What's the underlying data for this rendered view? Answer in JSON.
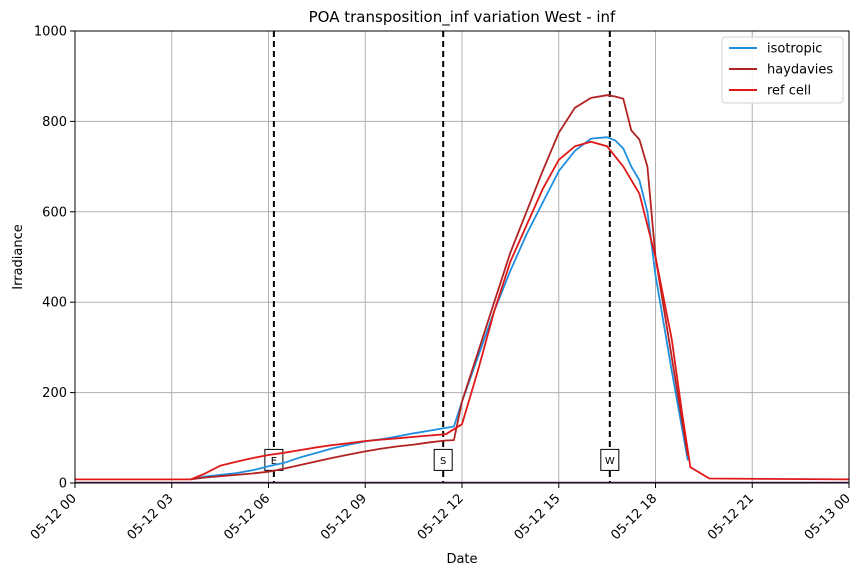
{
  "chart_data": {
    "type": "line",
    "title": "POA transposition_inf variation West - inf",
    "xlabel": "Date",
    "ylabel": "Irradiance",
    "xlim": [
      "05-12 00:00",
      "05-13 00:00"
    ],
    "ylim": [
      0,
      1000
    ],
    "grid": true,
    "legend_position": "top-right",
    "x_ticks": [
      "05-12 00",
      "05-12 03",
      "05-12 06",
      "05-12 09",
      "05-12 12",
      "05-12 15",
      "05-12 18",
      "05-12 21",
      "05-13 00"
    ],
    "y_ticks": [
      0,
      200,
      400,
      600,
      800,
      1000
    ],
    "vertical_markers": [
      {
        "time": "05-12 06:10",
        "label": "E"
      },
      {
        "time": "05-12 11:25",
        "label": "S"
      },
      {
        "time": "05-12 16:35",
        "label": "W"
      }
    ],
    "series": [
      {
        "name": "isotropic",
        "color": "#1f8fe0",
        "points": [
          [
            "05-12 03:35",
            8
          ],
          [
            "05-12 04:00",
            14
          ],
          [
            "05-12 04:30",
            18
          ],
          [
            "05-12 05:00",
            22
          ],
          [
            "05-12 05:30",
            28
          ],
          [
            "05-12 06:00",
            37
          ],
          [
            "05-12 06:30",
            45
          ],
          [
            "05-12 07:00",
            57
          ],
          [
            "05-12 07:30",
            67
          ],
          [
            "05-12 08:00",
            77
          ],
          [
            "05-12 08:30",
            85
          ],
          [
            "05-12 09:00",
            92
          ],
          [
            "05-12 09:30",
            97
          ],
          [
            "05-12 10:00",
            103
          ],
          [
            "05-12 10:30",
            110
          ],
          [
            "05-12 11:00",
            116
          ],
          [
            "05-12 11:30",
            122
          ],
          [
            "05-12 11:45",
            125
          ],
          [
            "05-12 12:00",
            180
          ],
          [
            "05-12 12:30",
            280
          ],
          [
            "05-12 13:00",
            380
          ],
          [
            "05-12 13:30",
            470
          ],
          [
            "05-12 14:00",
            550
          ],
          [
            "05-12 14:30",
            620
          ],
          [
            "05-12 15:00",
            690
          ],
          [
            "05-12 15:30",
            735
          ],
          [
            "05-12 16:00",
            762
          ],
          [
            "05-12 16:30",
            765
          ],
          [
            "05-12 16:45",
            758
          ],
          [
            "05-12 17:00",
            740
          ],
          [
            "05-12 17:15",
            700
          ],
          [
            "05-12 17:30",
            670
          ],
          [
            "05-12 17:45",
            600
          ],
          [
            "05-12 18:00",
            460
          ],
          [
            "05-12 18:30",
            250
          ],
          [
            "05-12 19:00",
            50
          ]
        ]
      },
      {
        "name": "haydavies",
        "color": "#b22222",
        "points": [
          [
            "05-12 03:35",
            8
          ],
          [
            "05-12 04:00",
            12
          ],
          [
            "05-12 04:30",
            15
          ],
          [
            "05-12 05:00",
            18
          ],
          [
            "05-12 05:30",
            21
          ],
          [
            "05-12 06:00",
            25
          ],
          [
            "05-12 06:30",
            32
          ],
          [
            "05-12 07:00",
            40
          ],
          [
            "05-12 07:30",
            48
          ],
          [
            "05-12 08:00",
            56
          ],
          [
            "05-12 08:30",
            63
          ],
          [
            "05-12 09:00",
            70
          ],
          [
            "05-12 09:30",
            76
          ],
          [
            "05-12 10:00",
            81
          ],
          [
            "05-12 10:30",
            85
          ],
          [
            "05-12 11:00",
            90
          ],
          [
            "05-12 11:30",
            94
          ],
          [
            "05-12 11:45",
            95
          ],
          [
            "05-12 12:00",
            180
          ],
          [
            "05-12 12:30",
            290
          ],
          [
            "05-12 13:00",
            400
          ],
          [
            "05-12 13:30",
            510
          ],
          [
            "05-12 14:00",
            600
          ],
          [
            "05-12 14:30",
            690
          ],
          [
            "05-12 15:00",
            775
          ],
          [
            "05-12 15:30",
            830
          ],
          [
            "05-12 16:00",
            852
          ],
          [
            "05-12 16:30",
            858
          ],
          [
            "05-12 16:45",
            855
          ],
          [
            "05-12 17:00",
            850
          ],
          [
            "05-12 17:15",
            780
          ],
          [
            "05-12 17:30",
            760
          ],
          [
            "05-12 17:45",
            700
          ],
          [
            "05-12 18:00",
            500
          ],
          [
            "05-12 18:30",
            280
          ],
          [
            "05-12 19:00",
            60
          ]
        ]
      },
      {
        "name": "ref cell",
        "color": "#e01818",
        "points": [
          [
            "05-12 00:00",
            8
          ],
          [
            "05-12 03:35",
            8
          ],
          [
            "05-12 04:00",
            20
          ],
          [
            "05-12 04:30",
            38
          ],
          [
            "05-12 05:00",
            47
          ],
          [
            "05-12 05:30",
            55
          ],
          [
            "05-12 06:00",
            62
          ],
          [
            "05-12 06:30",
            67
          ],
          [
            "05-12 07:00",
            73
          ],
          [
            "05-12 07:30",
            79
          ],
          [
            "05-12 08:00",
            84
          ],
          [
            "05-12 08:30",
            88
          ],
          [
            "05-12 09:00",
            93
          ],
          [
            "05-12 09:30",
            96
          ],
          [
            "05-12 10:00",
            99
          ],
          [
            "05-12 10:30",
            102
          ],
          [
            "05-12 11:00",
            105
          ],
          [
            "05-12 11:30",
            108
          ],
          [
            "05-12 12:00",
            130
          ],
          [
            "05-12 12:30",
            250
          ],
          [
            "05-12 13:00",
            380
          ],
          [
            "05-12 13:30",
            490
          ],
          [
            "05-12 14:00",
            570
          ],
          [
            "05-12 14:30",
            650
          ],
          [
            "05-12 15:00",
            715
          ],
          [
            "05-12 15:30",
            745
          ],
          [
            "05-12 16:00",
            755
          ],
          [
            "05-12 16:30",
            745
          ],
          [
            "05-12 17:00",
            700
          ],
          [
            "05-12 17:30",
            640
          ],
          [
            "05-12 18:00",
            500
          ],
          [
            "05-12 18:30",
            320
          ],
          [
            "05-12 18:50",
            150
          ],
          [
            "05-12 19:05",
            35
          ],
          [
            "05-12 19:40",
            10
          ],
          [
            "05-13 00:00",
            8
          ]
        ]
      }
    ]
  }
}
